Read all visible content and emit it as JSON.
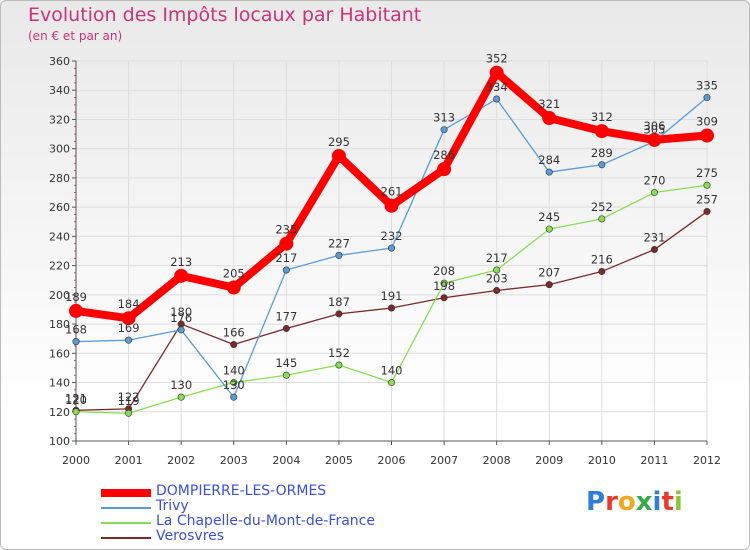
{
  "title": "Evolution des Impôts locaux par Habitant",
  "subtitle": "(en € et par an)",
  "logo": {
    "text": "Proxiti",
    "letter_colors": [
      "#2f7fd6",
      "#e83a2f",
      "#f2a81d",
      "#3aa84a",
      "#2f7fd6",
      "#e83a2f",
      "#8cc63f"
    ]
  },
  "colors": {
    "axis_label": "#333333",
    "point_label": "#333333",
    "grid": "#dddddd",
    "accent_tick": "#e0457b"
  },
  "chart_data": {
    "type": "line",
    "x": [
      "2000",
      "2001",
      "2002",
      "2003",
      "2004",
      "2005",
      "2006",
      "2007",
      "2008",
      "2009",
      "2010",
      "2011",
      "2012"
    ],
    "ylim": [
      100,
      360
    ],
    "yticks": [
      "100",
      "120",
      "140",
      "160",
      "180",
      "200",
      "220",
      "240",
      "260",
      "280",
      "300",
      "320",
      "340",
      "360"
    ],
    "grid": true,
    "legend_position": "bottom-left",
    "series": [
      {
        "name": "DOMPIERRE-LES-ORMES",
        "color": "#ff0000",
        "emphasis": true,
        "values": [
          189,
          184,
          213,
          205,
          235,
          295,
          261,
          286,
          352,
          321,
          312,
          306,
          309
        ],
        "labels": [
          "189",
          "184",
          "213",
          "205",
          "235",
          "295",
          "261",
          "286",
          "352",
          "321",
          "312",
          "306",
          "309"
        ]
      },
      {
        "name": "Trivy",
        "color": "#5b9bd5",
        "values": [
          168,
          169,
          176,
          130,
          217,
          227,
          232,
          313,
          334,
          284,
          289,
          305,
          335
        ],
        "labels": [
          "168",
          "169",
          "176",
          "130",
          "217",
          "227",
          "232",
          "313",
          "334",
          "284",
          "289",
          "305",
          "335"
        ]
      },
      {
        "name": "La Chapelle-du-Mont-de-France",
        "color": "#88dd55",
        "values": [
          120,
          119,
          130,
          140,
          145,
          152,
          140,
          208,
          217,
          245,
          252,
          270,
          275
        ],
        "labels": [
          "120",
          "119",
          "130",
          "140",
          "145",
          "152",
          "140",
          "208",
          "217",
          "245",
          "252",
          "270",
          "275"
        ]
      },
      {
        "name": "Verosvres",
        "color": "#7a2a2a",
        "values": [
          121,
          122,
          180,
          166,
          177,
          187,
          191,
          198,
          203,
          207,
          216,
          231,
          257
        ],
        "labels": [
          "121",
          "122",
          "180",
          "166",
          "177",
          "187",
          "191",
          "198",
          "203",
          "207",
          "216",
          "231",
          "257"
        ]
      }
    ]
  }
}
